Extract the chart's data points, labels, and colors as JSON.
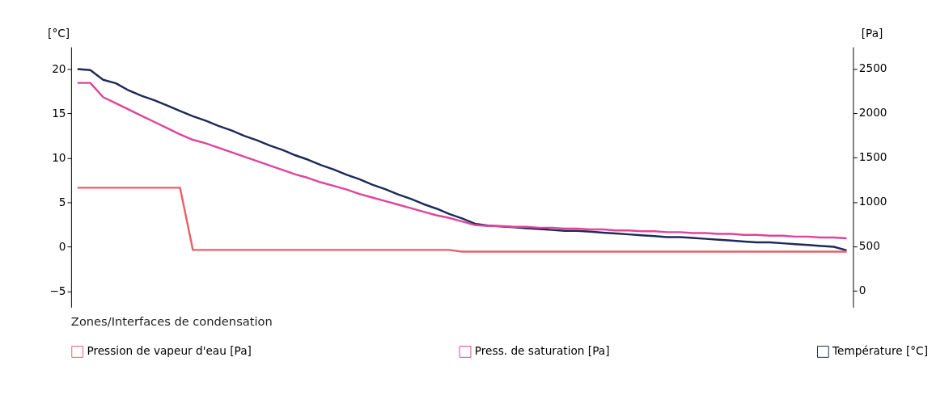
{
  "chart_data": {
    "type": "line",
    "ylabel": "[°C]",
    "y2label": "[Pa]",
    "categories": [
      null,
      null,
      null,
      null,
      null,
      null,
      null,
      null,
      null,
      null,
      null,
      null,
      null,
      null,
      null,
      null,
      null,
      null,
      null,
      null,
      null,
      null,
      null,
      null,
      null,
      null,
      null,
      null,
      null,
      null,
      null,
      null,
      null,
      null,
      null,
      null,
      null,
      null,
      null,
      null,
      null,
      null,
      null,
      null,
      null,
      null,
      null,
      null,
      null,
      null,
      null,
      null,
      null,
      null,
      null,
      null,
      null,
      null,
      null,
      null,
      null
    ],
    "ylim": [
      -6.8,
      22.5
    ],
    "yticks": [
      -5,
      0,
      5,
      10,
      15,
      20
    ],
    "y2lim": [
      -185,
      2745
    ],
    "y2ticks": [
      0,
      500,
      1000,
      1500,
      2000,
      2500
    ],
    "series": [
      {
        "name": "Pression de vapeur d'eau [Pa]",
        "color": "#e8606a",
        "axis": "y2",
        "values": [
          1160,
          1160,
          1160,
          1160,
          1160,
          1160,
          1160,
          1160,
          1160,
          460,
          460,
          460,
          460,
          460,
          460,
          460,
          460,
          460,
          460,
          460,
          460,
          460,
          460,
          460,
          460,
          460,
          460,
          460,
          460,
          460,
          440,
          440,
          440,
          440,
          440,
          440,
          440,
          440,
          440,
          440,
          440,
          440,
          440,
          440,
          440,
          440,
          440,
          440,
          440,
          440,
          440,
          440,
          440,
          440,
          440,
          440,
          440,
          440,
          440,
          440,
          440
        ]
      },
      {
        "name": "Press. de saturation [Pa]",
        "color": "#e0449a",
        "axis": "y2",
        "values": [
          2340,
          2340,
          2180,
          2110,
          2040,
          1970,
          1900,
          1830,
          1760,
          1700,
          1660,
          1610,
          1560,
          1510,
          1460,
          1410,
          1360,
          1310,
          1270,
          1220,
          1180,
          1140,
          1090,
          1050,
          1010,
          970,
          930,
          890,
          850,
          820,
          780,
          740,
          730,
          730,
          720,
          720,
          710,
          710,
          700,
          700,
          690,
          690,
          680,
          680,
          670,
          670,
          660,
          660,
          650,
          650,
          640,
          640,
          630,
          630,
          620,
          620,
          610,
          610,
          600,
          600,
          590
        ]
      },
      {
        "name": "Température [°C]",
        "color": "#1c2a5a",
        "values": [
          20.0,
          19.9,
          18.8,
          18.4,
          17.6,
          17.0,
          16.5,
          15.9,
          15.3,
          14.7,
          14.2,
          13.6,
          13.1,
          12.5,
          12.0,
          11.4,
          10.9,
          10.3,
          9.8,
          9.2,
          8.7,
          8.1,
          7.6,
          7.0,
          6.5,
          5.9,
          5.4,
          4.8,
          4.3,
          3.7,
          3.2,
          2.6,
          2.4,
          2.3,
          2.2,
          2.1,
          2.0,
          1.9,
          1.8,
          1.8,
          1.7,
          1.6,
          1.5,
          1.4,
          1.3,
          1.2,
          1.1,
          1.1,
          1.0,
          0.9,
          0.8,
          0.7,
          0.6,
          0.5,
          0.5,
          0.4,
          0.3,
          0.2,
          0.1,
          0.0,
          -0.4
        ]
      }
    ],
    "legend": "bottom",
    "grid": false,
    "marker": "none",
    "line_style": "solid",
    "annotations": [
      "Zones/Interfaces de condensation"
    ]
  }
}
